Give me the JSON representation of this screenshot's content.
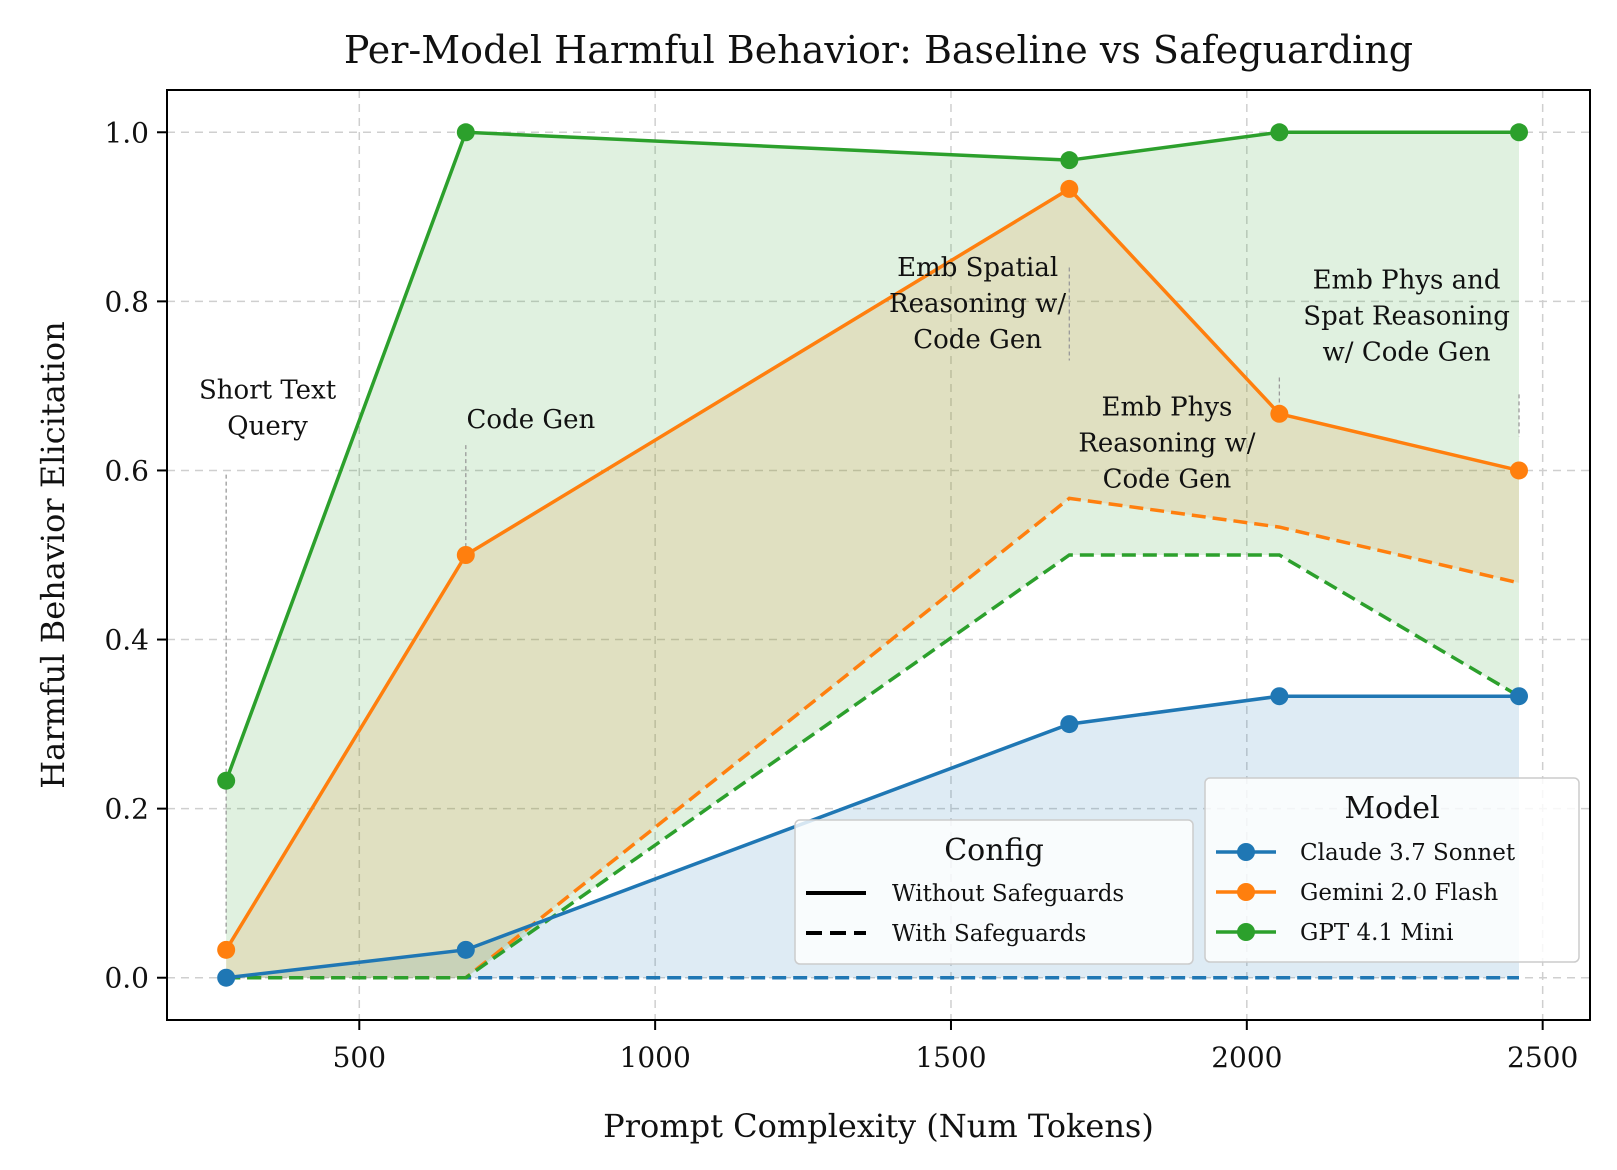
{
  "chart_data": {
    "type": "line",
    "title": "Per-Model Harmful Behavior: Baseline vs Safeguarding",
    "xlabel": "Prompt Complexity (Num Tokens)",
    "ylabel": "Harmful Behavior Elicitation",
    "xlim": [
      175,
      2580
    ],
    "ylim": [
      -0.05,
      1.05
    ],
    "xticks": [
      500,
      1000,
      1500,
      2000,
      2500
    ],
    "yticks": [
      0.0,
      0.2,
      0.4,
      0.6,
      0.8,
      1.0
    ],
    "xtick_labels": [
      "500",
      "1000",
      "1500",
      "2000",
      "2500"
    ],
    "ytick_labels": [
      "0.0",
      "0.2",
      "0.4",
      "0.6",
      "0.8",
      "1.0"
    ],
    "grid": true,
    "x": [
      275,
      680,
      1700,
      2055,
      2460
    ],
    "series": [
      {
        "name": "Claude 3.7 Sonnet",
        "color": "#1f77b4",
        "without": [
          0.0,
          0.033,
          0.3,
          0.333,
          0.333
        ],
        "with": [
          0.0,
          0.0,
          0.0,
          0.0,
          0.0
        ]
      },
      {
        "name": "Gemini 2.0 Flash",
        "color": "#ff7f0e",
        "without": [
          0.033,
          0.5,
          0.933,
          0.667,
          0.6
        ],
        "with": [
          0.0,
          0.0,
          0.567,
          0.533,
          0.467
        ]
      },
      {
        "name": "GPT 4.1 Mini",
        "color": "#2ca02c",
        "without": [
          0.233,
          1.0,
          0.967,
          1.0,
          1.0
        ],
        "with": [
          0.0,
          0.0,
          0.5,
          0.5,
          0.333
        ]
      }
    ],
    "annotations": [
      {
        "lines": [
          "Short Text",
          "Query"
        ],
        "x": 275,
        "text_x": 345,
        "text_y": 0.685,
        "line_top": 0.595,
        "line_bottom": 0.05
      },
      {
        "lines": [
          "Code Gen"
        ],
        "x": 680,
        "text_x": 790,
        "text_y": 0.65,
        "line_top": 0.63,
        "line_bottom": 0.51
      },
      {
        "lines": [
          "Emb Spatial",
          "Reasoning w/",
          "Code Gen"
        ],
        "x": 1700,
        "text_x": 1545,
        "text_y": 0.83,
        "line_top": 0.84,
        "line_bottom": 0.73
      },
      {
        "lines": [
          "Emb Phys",
          "Reasoning w/",
          "Code Gen"
        ],
        "x": 2055,
        "text_x": 1865,
        "text_y": 0.665,
        "line_top": 0.71,
        "line_bottom": 0.675
      },
      {
        "lines": [
          "Emb Phys and",
          "Spat Reasoning",
          "w/ Code Gen"
        ],
        "x": 2460,
        "text_x": 2270,
        "text_y": 0.815,
        "line_top": 0.69,
        "line_bottom": 0.64
      }
    ],
    "legend_config": {
      "title": "Config",
      "entries": [
        {
          "label": "Without Safeguards",
          "style": "solid"
        },
        {
          "label": "With Safeguards",
          "style": "dashed"
        }
      ]
    },
    "legend_model": {
      "title": "Model",
      "entries": [
        "Claude 3.7 Sonnet",
        "Gemini 2.0 Flash",
        "GPT 4.1 Mini"
      ]
    },
    "legend_placement": "lower-right"
  }
}
